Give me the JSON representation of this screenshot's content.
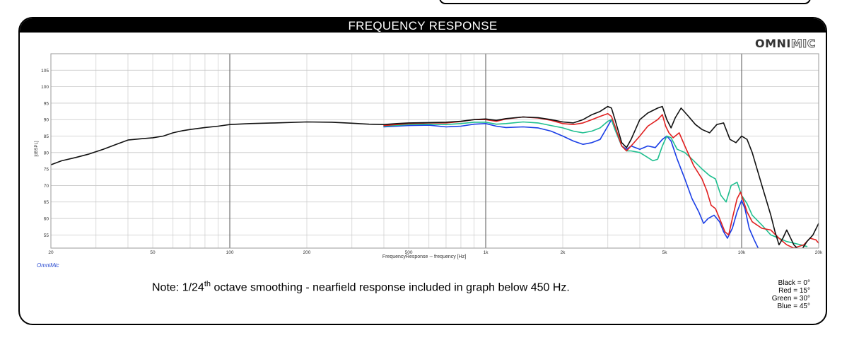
{
  "panel": {
    "title": "FREQUENCY RESPONSE",
    "logo_strong": "OMNI",
    "logo_outline": "MIC",
    "brand_small": "OmniMic"
  },
  "note": {
    "prefix": "Note: 1/24",
    "superscript": "th",
    "suffix": " octave smoothing - nearfield response included in graph below 450 Hz."
  },
  "legend": [
    "Black = 0°",
    "Red = 15°",
    "Green = 30°",
    "Blue = 45°"
  ],
  "chart_data": {
    "type": "line",
    "xlabel": "FrequencyResponse -- frequency [Hz]",
    "ylabel": "[dBSPL]",
    "x_scale": "log",
    "xlim": [
      20,
      20000
    ],
    "ylim": [
      51,
      110
    ],
    "x_ticks": [
      {
        "value": 20,
        "label": "20"
      },
      {
        "value": 50,
        "label": "50"
      },
      {
        "value": 100,
        "label": "100"
      },
      {
        "value": 200,
        "label": "200"
      },
      {
        "value": 500,
        "label": "500"
      },
      {
        "value": 1000,
        "label": "1k"
      },
      {
        "value": 2000,
        "label": "2k"
      },
      {
        "value": 5000,
        "label": "5k"
      },
      {
        "value": 10000,
        "label": "10k"
      },
      {
        "value": 20000,
        "label": "20k"
      }
    ],
    "y_ticks": [
      55,
      60,
      65,
      70,
      75,
      80,
      85,
      90,
      95,
      100,
      105
    ],
    "grid": true,
    "colors": {
      "black": "#111111",
      "red": "#e02020",
      "green": "#1fbf8f",
      "blue": "#1a3ee6"
    },
    "series": [
      {
        "name": "Black = 0°",
        "color": "#111111",
        "points": [
          [
            20,
            76.3
          ],
          [
            22,
            77.5
          ],
          [
            25,
            78.5
          ],
          [
            28,
            79.5
          ],
          [
            32,
            81.0
          ],
          [
            36,
            82.5
          ],
          [
            40,
            83.8
          ],
          [
            45,
            84.2
          ],
          [
            50,
            84.5
          ],
          [
            55,
            85.0
          ],
          [
            60,
            86.0
          ],
          [
            65,
            86.6
          ],
          [
            70,
            87.0
          ],
          [
            80,
            87.6
          ],
          [
            90,
            88.0
          ],
          [
            100,
            88.5
          ],
          [
            120,
            88.8
          ],
          [
            150,
            89.0
          ],
          [
            200,
            89.3
          ],
          [
            250,
            89.2
          ],
          [
            300,
            88.9
          ],
          [
            350,
            88.6
          ],
          [
            400,
            88.5
          ],
          [
            450,
            88.8
          ],
          [
            500,
            89.0
          ],
          [
            600,
            89.1
          ],
          [
            700,
            89.2
          ],
          [
            800,
            89.5
          ],
          [
            900,
            90.0
          ],
          [
            1000,
            90.2
          ],
          [
            1100,
            89.8
          ],
          [
            1200,
            90.3
          ],
          [
            1400,
            90.8
          ],
          [
            1600,
            90.6
          ],
          [
            1800,
            90.0
          ],
          [
            2000,
            89.3
          ],
          [
            2200,
            89.0
          ],
          [
            2400,
            90.0
          ],
          [
            2600,
            91.5
          ],
          [
            2800,
            92.5
          ],
          [
            3000,
            94.0
          ],
          [
            3100,
            93.5
          ],
          [
            3200,
            90.0
          ],
          [
            3400,
            83.0
          ],
          [
            3550,
            81.5
          ],
          [
            3700,
            84.0
          ],
          [
            4000,
            90.0
          ],
          [
            4300,
            92.0
          ],
          [
            4700,
            93.5
          ],
          [
            4900,
            94.0
          ],
          [
            5100,
            90.0
          ],
          [
            5300,
            87.5
          ],
          [
            5500,
            90.5
          ],
          [
            5800,
            93.5
          ],
          [
            6200,
            91.0
          ],
          [
            6600,
            88.5
          ],
          [
            7000,
            87.0
          ],
          [
            7500,
            86.0
          ],
          [
            8000,
            88.5
          ],
          [
            8500,
            89.0
          ],
          [
            9000,
            84.0
          ],
          [
            9500,
            83.0
          ],
          [
            10000,
            85.0
          ],
          [
            10500,
            84.0
          ],
          [
            11000,
            80.0
          ],
          [
            12000,
            70.0
          ],
          [
            13000,
            61.0
          ],
          [
            13500,
            56.0
          ],
          [
            14000,
            52.0
          ],
          [
            14500,
            54.0
          ],
          [
            15000,
            56.5
          ],
          [
            16000,
            52.0
          ],
          [
            17000,
            50.0
          ],
          [
            18000,
            53.0
          ],
          [
            19000,
            55.0
          ],
          [
            20000,
            58.5
          ]
        ]
      },
      {
        "name": "Red = 15°",
        "color": "#e02020",
        "points": [
          [
            400,
            88.2
          ],
          [
            500,
            88.8
          ],
          [
            600,
            89.0
          ],
          [
            700,
            89.0
          ],
          [
            800,
            89.4
          ],
          [
            900,
            90.0
          ],
          [
            1000,
            90.0
          ],
          [
            1100,
            89.5
          ],
          [
            1200,
            90.2
          ],
          [
            1400,
            90.8
          ],
          [
            1600,
            90.5
          ],
          [
            1800,
            89.8
          ],
          [
            2000,
            88.8
          ],
          [
            2200,
            88.5
          ],
          [
            2400,
            89.0
          ],
          [
            2600,
            90.0
          ],
          [
            2800,
            91.0
          ],
          [
            3000,
            91.8
          ],
          [
            3100,
            91.0
          ],
          [
            3200,
            88.0
          ],
          [
            3400,
            82.0
          ],
          [
            3550,
            80.5
          ],
          [
            3700,
            82.0
          ],
          [
            4000,
            85.0
          ],
          [
            4300,
            88.0
          ],
          [
            4700,
            90.0
          ],
          [
            4900,
            91.5
          ],
          [
            5050,
            88.0
          ],
          [
            5200,
            86.0
          ],
          [
            5400,
            84.5
          ],
          [
            5700,
            86.0
          ],
          [
            6000,
            82.0
          ],
          [
            6500,
            76.0
          ],
          [
            7000,
            72.0
          ],
          [
            7300,
            68.5
          ],
          [
            7600,
            64.0
          ],
          [
            7900,
            63.0
          ],
          [
            8200,
            60.0
          ],
          [
            8600,
            56.0
          ],
          [
            8900,
            55.0
          ],
          [
            9200,
            60.0
          ],
          [
            9600,
            66.0
          ],
          [
            9900,
            68.0
          ],
          [
            10100,
            66.0
          ],
          [
            10500,
            62.0
          ],
          [
            11000,
            59.0
          ],
          [
            12000,
            57.0
          ],
          [
            13000,
            56.5
          ],
          [
            14000,
            54.0
          ],
          [
            15000,
            52.0
          ],
          [
            16000,
            51.0
          ],
          [
            17500,
            52.0
          ],
          [
            18500,
            54.0
          ],
          [
            19500,
            53.5
          ],
          [
            20000,
            52.5
          ]
        ]
      },
      {
        "name": "Green = 30°",
        "color": "#1fbf8f",
        "points": [
          [
            400,
            88.0
          ],
          [
            500,
            88.5
          ],
          [
            600,
            88.6
          ],
          [
            700,
            88.5
          ],
          [
            800,
            88.8
          ],
          [
            900,
            89.2
          ],
          [
            1000,
            89.2
          ],
          [
            1100,
            88.6
          ],
          [
            1200,
            88.8
          ],
          [
            1400,
            89.3
          ],
          [
            1600,
            89.0
          ],
          [
            1800,
            88.2
          ],
          [
            2000,
            87.5
          ],
          [
            2200,
            86.5
          ],
          [
            2400,
            86.0
          ],
          [
            2600,
            86.5
          ],
          [
            2800,
            87.5
          ],
          [
            3000,
            89.5
          ],
          [
            3100,
            90.0
          ],
          [
            3200,
            87.0
          ],
          [
            3400,
            82.0
          ],
          [
            3550,
            80.5
          ],
          [
            3700,
            80.5
          ],
          [
            4000,
            80.0
          ],
          [
            4300,
            78.5
          ],
          [
            4500,
            77.5
          ],
          [
            4700,
            78.0
          ],
          [
            4900,
            82.0
          ],
          [
            5100,
            85.0
          ],
          [
            5300,
            84.5
          ],
          [
            5600,
            81.0
          ],
          [
            6000,
            80.0
          ],
          [
            6400,
            78.0
          ],
          [
            7000,
            75.0
          ],
          [
            7500,
            73.0
          ],
          [
            7900,
            72.0
          ],
          [
            8300,
            67.0
          ],
          [
            8700,
            65.0
          ],
          [
            9100,
            70.0
          ],
          [
            9600,
            71.0
          ],
          [
            10000,
            67.0
          ],
          [
            10500,
            64.5
          ],
          [
            11000,
            61.0
          ],
          [
            12000,
            58.0
          ],
          [
            13000,
            55.0
          ],
          [
            14000,
            54.0
          ],
          [
            15000,
            53.0
          ],
          [
            16000,
            52.5
          ],
          [
            17000,
            52.0
          ],
          [
            18000,
            51.5
          ]
        ]
      },
      {
        "name": "Blue = 45°",
        "color": "#1a3ee6",
        "points": [
          [
            400,
            87.8
          ],
          [
            500,
            88.2
          ],
          [
            600,
            88.3
          ],
          [
            700,
            87.8
          ],
          [
            800,
            88.0
          ],
          [
            900,
            88.6
          ],
          [
            1000,
            88.8
          ],
          [
            1100,
            88.0
          ],
          [
            1200,
            87.6
          ],
          [
            1400,
            87.8
          ],
          [
            1600,
            87.5
          ],
          [
            1800,
            86.5
          ],
          [
            2000,
            85.0
          ],
          [
            2200,
            83.5
          ],
          [
            2400,
            82.5
          ],
          [
            2600,
            83.0
          ],
          [
            2800,
            84.0
          ],
          [
            3000,
            88.0
          ],
          [
            3100,
            90.0
          ],
          [
            3200,
            87.0
          ],
          [
            3400,
            82.0
          ],
          [
            3550,
            81.0
          ],
          [
            3700,
            82.0
          ],
          [
            4000,
            81.0
          ],
          [
            4300,
            82.0
          ],
          [
            4600,
            81.5
          ],
          [
            4900,
            84.0
          ],
          [
            5100,
            85.0
          ],
          [
            5300,
            83.5
          ],
          [
            5600,
            78.0
          ],
          [
            6000,
            72.0
          ],
          [
            6400,
            66.0
          ],
          [
            6800,
            62.0
          ],
          [
            7100,
            58.5
          ],
          [
            7400,
            60.0
          ],
          [
            7800,
            61.0
          ],
          [
            8200,
            59.0
          ],
          [
            8500,
            56.0
          ],
          [
            8800,
            54.0
          ],
          [
            9200,
            57.0
          ],
          [
            9600,
            62.0
          ],
          [
            10000,
            65.5
          ],
          [
            10300,
            63.0
          ],
          [
            10700,
            57.0
          ],
          [
            11200,
            53.5
          ],
          [
            11600,
            51.0
          ]
        ]
      }
    ]
  }
}
